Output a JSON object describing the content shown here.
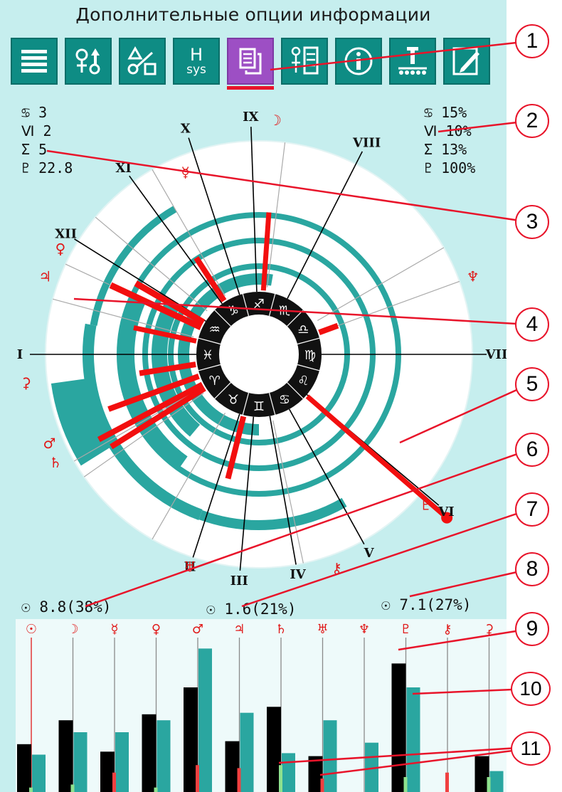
{
  "header": {
    "title": "Дополнительные опции информации"
  },
  "toolbar": {
    "buttons": [
      {
        "id": "menu",
        "label": ""
      },
      {
        "id": "planets",
        "label": ""
      },
      {
        "id": "aspects",
        "label": ""
      },
      {
        "id": "houses",
        "label_top": "H",
        "label_bottom": "sys"
      },
      {
        "id": "copy",
        "label": "",
        "active": true
      },
      {
        "id": "table",
        "label": ""
      },
      {
        "id": "info",
        "label": ""
      },
      {
        "id": "transit",
        "label": ""
      },
      {
        "id": "edit",
        "label": ""
      }
    ]
  },
  "stats_left": [
    {
      "symbol": "♋",
      "value": "3"
    },
    {
      "symbol": "Ⅵ",
      "value": "2"
    },
    {
      "symbol": "Σ",
      "value": "5"
    },
    {
      "symbol": "♇",
      "value": "22.8"
    }
  ],
  "stats_right": [
    {
      "symbol": "♋",
      "value": "15%"
    },
    {
      "symbol": "Ⅵ",
      "value": "10%"
    },
    {
      "symbol": "Σ",
      "value": "13%"
    },
    {
      "symbol": "♇",
      "value": "100%"
    }
  ],
  "wheel": {
    "houses": [
      "I",
      "II",
      "III",
      "IV",
      "V",
      "VI",
      "VII",
      "VIII",
      "IX",
      "X",
      "XI",
      "XII"
    ],
    "zodiac": [
      "♈",
      "♉",
      "♊",
      "♋",
      "♌",
      "♍",
      "♎",
      "♏",
      "♐",
      "♑",
      "♒",
      "♓"
    ],
    "planets_on_wheel": [
      "☽",
      "☿",
      "♀",
      "♃",
      "♆",
      "⚳",
      "♂",
      "♄",
      "♅",
      "⚷",
      "♇"
    ]
  },
  "bottom_values": [
    {
      "symbol": "☉",
      "text": "8.8(38%)"
    },
    {
      "symbol": "☉",
      "text": "1.6(21%)"
    },
    {
      "symbol": "☉",
      "text": "7.1(27%)"
    }
  ],
  "bar_chart": {
    "planets": [
      "☉",
      "☽",
      "☿",
      "♀",
      "♂",
      "♃",
      "♄",
      "♅",
      "♆",
      "♇",
      "⚷",
      "⚳"
    ],
    "black": [
      0.32,
      0.48,
      0.27,
      0.52,
      0.7,
      0.34,
      0.57,
      0.24,
      0.0,
      0.86,
      0.0,
      0.24
    ],
    "teal": [
      0.25,
      0.4,
      0.4,
      0.48,
      0.96,
      0.53,
      0.26,
      0.48,
      0.33,
      0.7,
      0.0,
      0.14
    ],
    "green": [
      0.03,
      0.05,
      0.0,
      0.03,
      0.0,
      0.0,
      0.18,
      0.0,
      0.0,
      0.1,
      0.0,
      0.1
    ],
    "red": [
      0.0,
      0.0,
      0.13,
      0.0,
      0.18,
      0.16,
      0.0,
      0.09,
      0.0,
      0.0,
      0.13,
      0.0
    ],
    "colors": {
      "black": "#000000",
      "teal": "#2aa6a0",
      "green": "#8ee28e",
      "red": "#f04040",
      "grid": "#8a8a8a",
      "symbol": "#e01818"
    }
  },
  "callouts": [
    "1",
    "2",
    "3",
    "4",
    "5",
    "6",
    "7",
    "8",
    "9",
    "10",
    "11"
  ],
  "colors": {
    "panel": "#c6eeee",
    "button": "#0e8c84",
    "active": "#9d4fc4",
    "accent": "#e8142a",
    "teal": "#2aa6a0"
  }
}
